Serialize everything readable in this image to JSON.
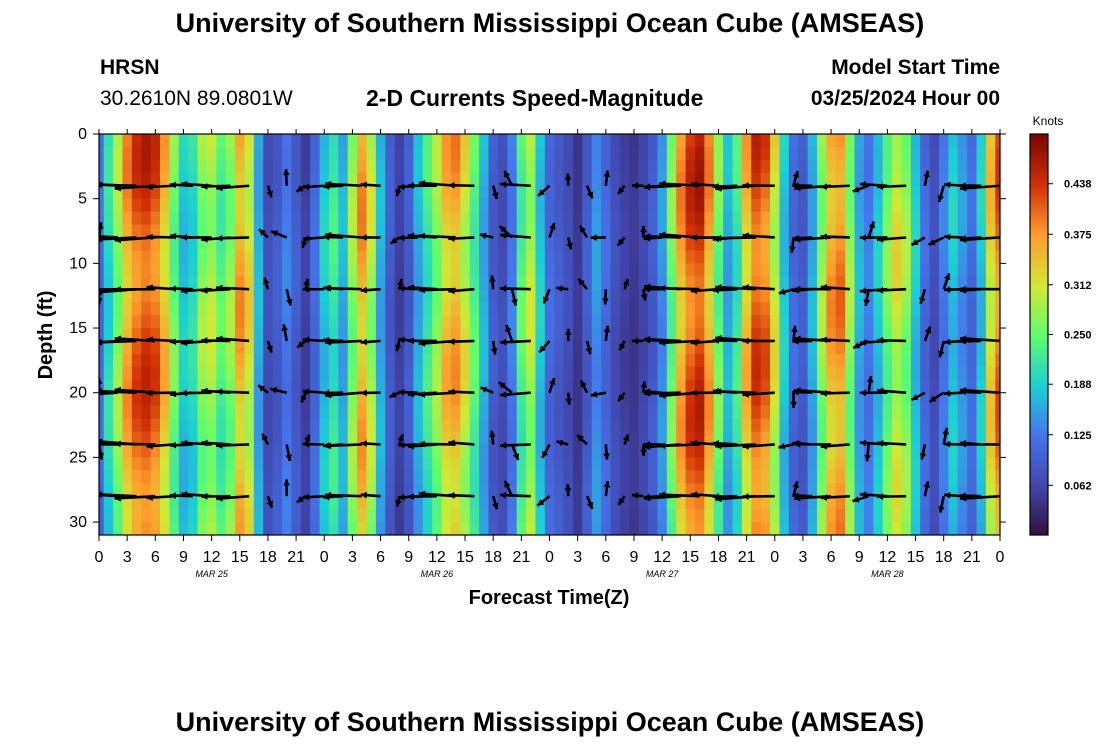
{
  "header": {
    "title": "University of Southern Mississippi Ocean Cube (AMSEAS)",
    "title_repeat": "University of Southern Mississippi Ocean Cube (AMSEAS)",
    "station": "HRSN",
    "coords": "30.2610N  89.0801W",
    "product": "2-D Currents Speed-Magnitude",
    "model_start_label": "Model Start Time",
    "model_start_value": "03/25/2024 Hour 00"
  },
  "chart_data": {
    "type": "heatmap",
    "title": "2-D Currents Speed-Magnitude",
    "xlabel": "Forecast Time(Z)",
    "ylabel": "Depth (ft)",
    "x_ticks": [
      "0",
      "3",
      "6",
      "9",
      "12",
      "15",
      "18",
      "21",
      "0",
      "3",
      "6",
      "9",
      "12",
      "15",
      "18",
      "21",
      "0",
      "3",
      "6",
      "9",
      "12",
      "15",
      "18",
      "21",
      "0",
      "3",
      "6",
      "9",
      "12",
      "15",
      "18",
      "21",
      "0"
    ],
    "x_hours_range": [
      0,
      96
    ],
    "day_labels": [
      {
        "label": "MAR 25",
        "hour": 12
      },
      {
        "label": "MAR 26",
        "hour": 36
      },
      {
        "label": "MAR 27",
        "hour": 60
      },
      {
        "label": "MAR 28",
        "hour": 84
      }
    ],
    "y_ticks": [
      0,
      5,
      10,
      15,
      20,
      25,
      30
    ],
    "ylim": [
      0,
      31
    ],
    "y_inverted": true,
    "colorbar": {
      "unit": "Knots",
      "range": [
        0,
        0.5
      ],
      "tick_labels": [
        "0.438",
        "0.375",
        "0.312",
        "0.250",
        "0.188",
        "0.125",
        "0.062"
      ],
      "tick_values": [
        0.438,
        0.375,
        0.312,
        0.25,
        0.188,
        0.125,
        0.062
      ]
    },
    "speed_by_hour": [
      {
        "hour": 0,
        "speed": 0.12
      },
      {
        "hour": 1,
        "speed": 0.22
      },
      {
        "hour": 2,
        "speed": 0.3
      },
      {
        "hour": 3,
        "speed": 0.4
      },
      {
        "hour": 4,
        "speed": 0.45
      },
      {
        "hour": 5,
        "speed": 0.47
      },
      {
        "hour": 6,
        "speed": 0.45
      },
      {
        "hour": 7,
        "speed": 0.38
      },
      {
        "hour": 8,
        "speed": 0.28
      },
      {
        "hour": 9,
        "speed": 0.2
      },
      {
        "hour": 10,
        "speed": 0.22
      },
      {
        "hour": 11,
        "speed": 0.3
      },
      {
        "hour": 12,
        "speed": 0.32
      },
      {
        "hour": 13,
        "speed": 0.26
      },
      {
        "hour": 14,
        "speed": 0.3
      },
      {
        "hour": 15,
        "speed": 0.4
      },
      {
        "hour": 16,
        "speed": 0.35
      },
      {
        "hour": 17,
        "speed": 0.18
      },
      {
        "hour": 18,
        "speed": 0.08
      },
      {
        "hour": 19,
        "speed": 0.1
      },
      {
        "hour": 20,
        "speed": 0.14
      },
      {
        "hour": 21,
        "speed": 0.1
      },
      {
        "hour": 22,
        "speed": 0.06
      },
      {
        "hour": 23,
        "speed": 0.12
      },
      {
        "hour": 24,
        "speed": 0.2
      },
      {
        "hour": 25,
        "speed": 0.24
      },
      {
        "hour": 26,
        "speed": 0.18
      },
      {
        "hour": 27,
        "speed": 0.3
      },
      {
        "hour": 28,
        "speed": 0.4
      },
      {
        "hour": 29,
        "speed": 0.32
      },
      {
        "hour": 30,
        "speed": 0.18
      },
      {
        "hour": 31,
        "speed": 0.1
      },
      {
        "hour": 32,
        "speed": 0.06
      },
      {
        "hour": 33,
        "speed": 0.1
      },
      {
        "hour": 34,
        "speed": 0.18
      },
      {
        "hour": 35,
        "speed": 0.24
      },
      {
        "hour": 36,
        "speed": 0.3
      },
      {
        "hour": 37,
        "speed": 0.38
      },
      {
        "hour": 38,
        "speed": 0.4
      },
      {
        "hour": 39,
        "speed": 0.34
      },
      {
        "hour": 40,
        "speed": 0.26
      },
      {
        "hour": 41,
        "speed": 0.18
      },
      {
        "hour": 42,
        "speed": 0.1
      },
      {
        "hour": 43,
        "speed": 0.08
      },
      {
        "hour": 44,
        "speed": 0.14
      },
      {
        "hour": 45,
        "speed": 0.26
      },
      {
        "hour": 46,
        "speed": 0.32
      },
      {
        "hour": 47,
        "speed": 0.2
      },
      {
        "hour": 48,
        "speed": 0.12
      },
      {
        "hour": 49,
        "speed": 0.1
      },
      {
        "hour": 50,
        "speed": 0.08
      },
      {
        "hour": 51,
        "speed": 0.05
      },
      {
        "hour": 52,
        "speed": 0.1
      },
      {
        "hour": 53,
        "speed": 0.16
      },
      {
        "hour": 54,
        "speed": 0.12
      },
      {
        "hour": 55,
        "speed": 0.08
      },
      {
        "hour": 56,
        "speed": 0.06
      },
      {
        "hour": 57,
        "speed": 0.05
      },
      {
        "hour": 58,
        "speed": 0.07
      },
      {
        "hour": 59,
        "speed": 0.1
      },
      {
        "hour": 60,
        "speed": 0.16
      },
      {
        "hour": 61,
        "speed": 0.28
      },
      {
        "hour": 62,
        "speed": 0.4
      },
      {
        "hour": 63,
        "speed": 0.46
      },
      {
        "hour": 64,
        "speed": 0.48
      },
      {
        "hour": 65,
        "speed": 0.4
      },
      {
        "hour": 66,
        "speed": 0.28
      },
      {
        "hour": 67,
        "speed": 0.18
      },
      {
        "hour": 68,
        "speed": 0.24
      },
      {
        "hour": 69,
        "speed": 0.38
      },
      {
        "hour": 70,
        "speed": 0.46
      },
      {
        "hour": 71,
        "speed": 0.44
      },
      {
        "hour": 72,
        "speed": 0.34
      },
      {
        "hour": 73,
        "speed": 0.2
      },
      {
        "hour": 74,
        "speed": 0.12
      },
      {
        "hour": 75,
        "speed": 0.1
      },
      {
        "hour": 76,
        "speed": 0.18
      },
      {
        "hour": 77,
        "speed": 0.3
      },
      {
        "hour": 78,
        "speed": 0.4
      },
      {
        "hour": 79,
        "speed": 0.42
      },
      {
        "hour": 80,
        "speed": 0.3
      },
      {
        "hour": 81,
        "speed": 0.18
      },
      {
        "hour": 82,
        "speed": 0.14
      },
      {
        "hour": 83,
        "speed": 0.2
      },
      {
        "hour": 84,
        "speed": 0.28
      },
      {
        "hour": 85,
        "speed": 0.34
      },
      {
        "hour": 86,
        "speed": 0.3
      },
      {
        "hour": 87,
        "speed": 0.2
      },
      {
        "hour": 88,
        "speed": 0.12
      },
      {
        "hour": 89,
        "speed": 0.08
      },
      {
        "hour": 90,
        "speed": 0.14
      },
      {
        "hour": 91,
        "speed": 0.2
      },
      {
        "hour": 92,
        "speed": 0.16
      },
      {
        "hour": 93,
        "speed": 0.12
      },
      {
        "hour": 94,
        "speed": 0.2
      },
      {
        "hour": 95,
        "speed": 0.36
      },
      {
        "hour": 96,
        "speed": 0.44
      }
    ],
    "vector_depths_ft": [
      4,
      8,
      12,
      16,
      20,
      24,
      28
    ]
  }
}
